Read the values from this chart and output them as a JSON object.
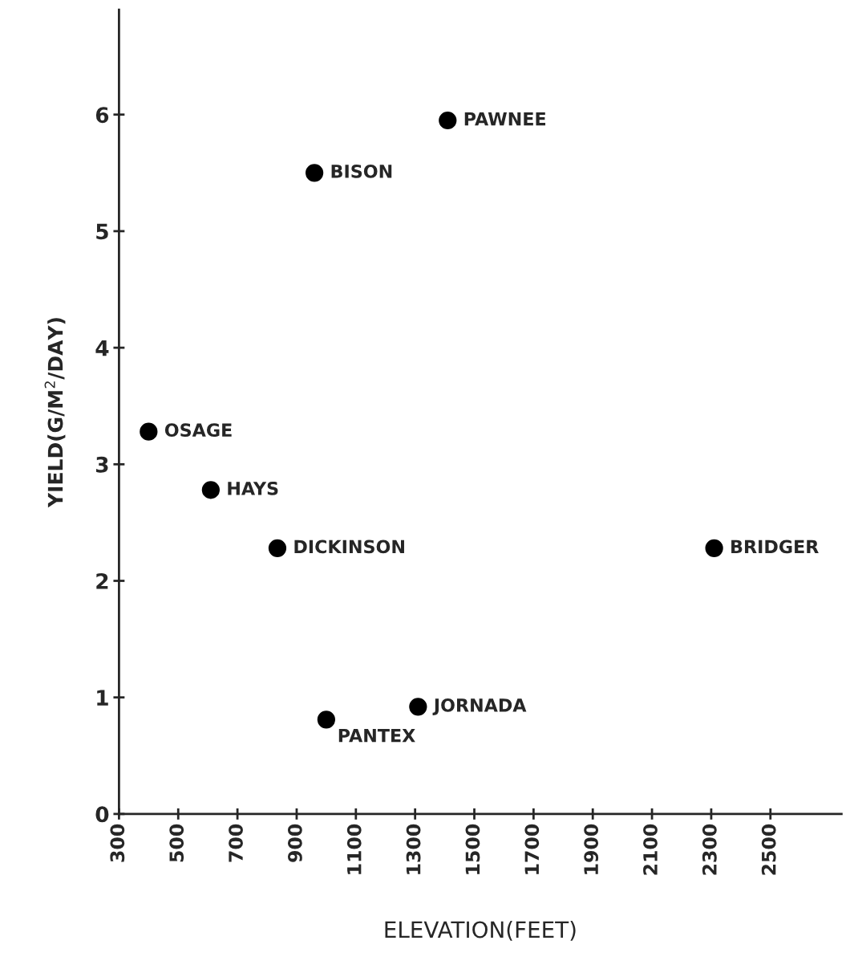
{
  "chart_data": {
    "type": "scatter",
    "xlabel": "ELEVATION(FEET)",
    "ylabel": "YIELD(G/M$^{2}$/DAY)",
    "x": [
      1410,
      960,
      400,
      610,
      835,
      2310,
      1000,
      1310
    ],
    "values": [
      5.95,
      5.5,
      3.28,
      2.78,
      2.28,
      2.28,
      0.81,
      0.92
    ],
    "color": "#000000",
    "marker": "circle",
    "grid": false,
    "legend": false,
    "xlim": [
      300,
      2740
    ],
    "ylim": [
      0,
      6.9
    ],
    "xticks": [
      300,
      500,
      700,
      900,
      1100,
      1300,
      1500,
      1700,
      1900,
      2100,
      2300,
      2500
    ],
    "yticks": [
      0,
      1,
      2,
      3,
      4,
      5,
      6
    ],
    "annotations": [
      {
        "text": "PAWNEE",
        "x": 1410,
        "y": 5.95
      },
      {
        "text": "BISON",
        "x": 960,
        "y": 5.5
      },
      {
        "text": "OSAGE",
        "x": 400,
        "y": 3.28
      },
      {
        "text": "HAYS",
        "x": 610,
        "y": 2.78
      },
      {
        "text": "DICKINSON",
        "x": 835,
        "y": 2.28
      },
      {
        "text": "BRIDGER",
        "x": 2310,
        "y": 2.28
      },
      {
        "text": "PANTEX",
        "x": 1000,
        "y": 0.81
      },
      {
        "text": "JORNADA",
        "x": 1310,
        "y": 0.92
      }
    ]
  }
}
